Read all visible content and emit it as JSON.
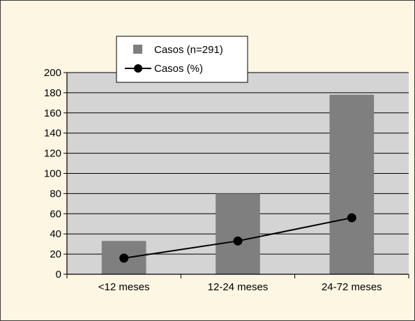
{
  "chart_data": {
    "type": "bar",
    "categories": [
      "<12 meses",
      "12-24 meses",
      "24-72 meses"
    ],
    "series": [
      {
        "name": "Casos (n=291)",
        "kind": "bar",
        "values": [
          33,
          80,
          178
        ]
      },
      {
        "name": "Casos (%)",
        "kind": "line",
        "values": [
          16,
          33,
          56
        ]
      }
    ],
    "title": "",
    "xlabel": "",
    "ylabel": "",
    "ylim": [
      0,
      200
    ],
    "ytick_step": 20,
    "grid": true,
    "legend_position": "top-left",
    "colors": {
      "frame_background": "#fdf6e3",
      "plot_background": "#d4d4d4",
      "bar": "#7f7f7f",
      "line": "#000000",
      "marker": "#000000",
      "grid": "#000000"
    }
  }
}
